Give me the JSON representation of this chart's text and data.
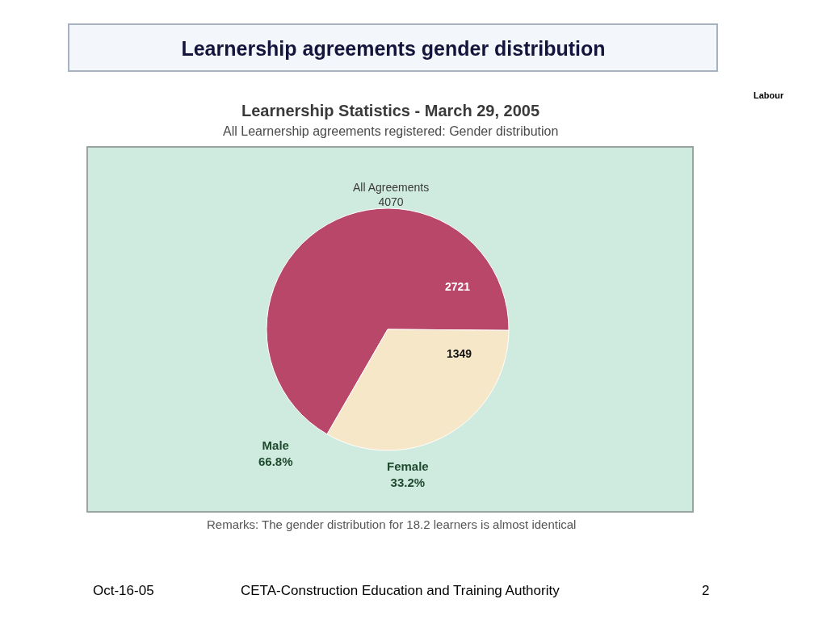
{
  "chart_data": {
    "type": "pie",
    "title": "Learnership agreements gender distribution",
    "subtitle": "Learnership Statistics - March 29, 2005",
    "categories": [
      "Male",
      "Female"
    ],
    "values": [
      66.8,
      33.2
    ],
    "colors": [
      "#b8476a",
      "#f7e7c9"
    ],
    "value_labels": [
      "66.8%",
      "33.2%"
    ],
    "annotations": [
      "All Learnership agreements registered: Gender distribution",
      "All Agreements\n4070",
      "2721",
      "1349",
      "Remarks: The gender distribution for 18.2 learners is almost identical",
      "Oct-16-05",
      "CETA-Construction Education and Training Authority",
      "2",
      "Labour"
    ]
  }
}
